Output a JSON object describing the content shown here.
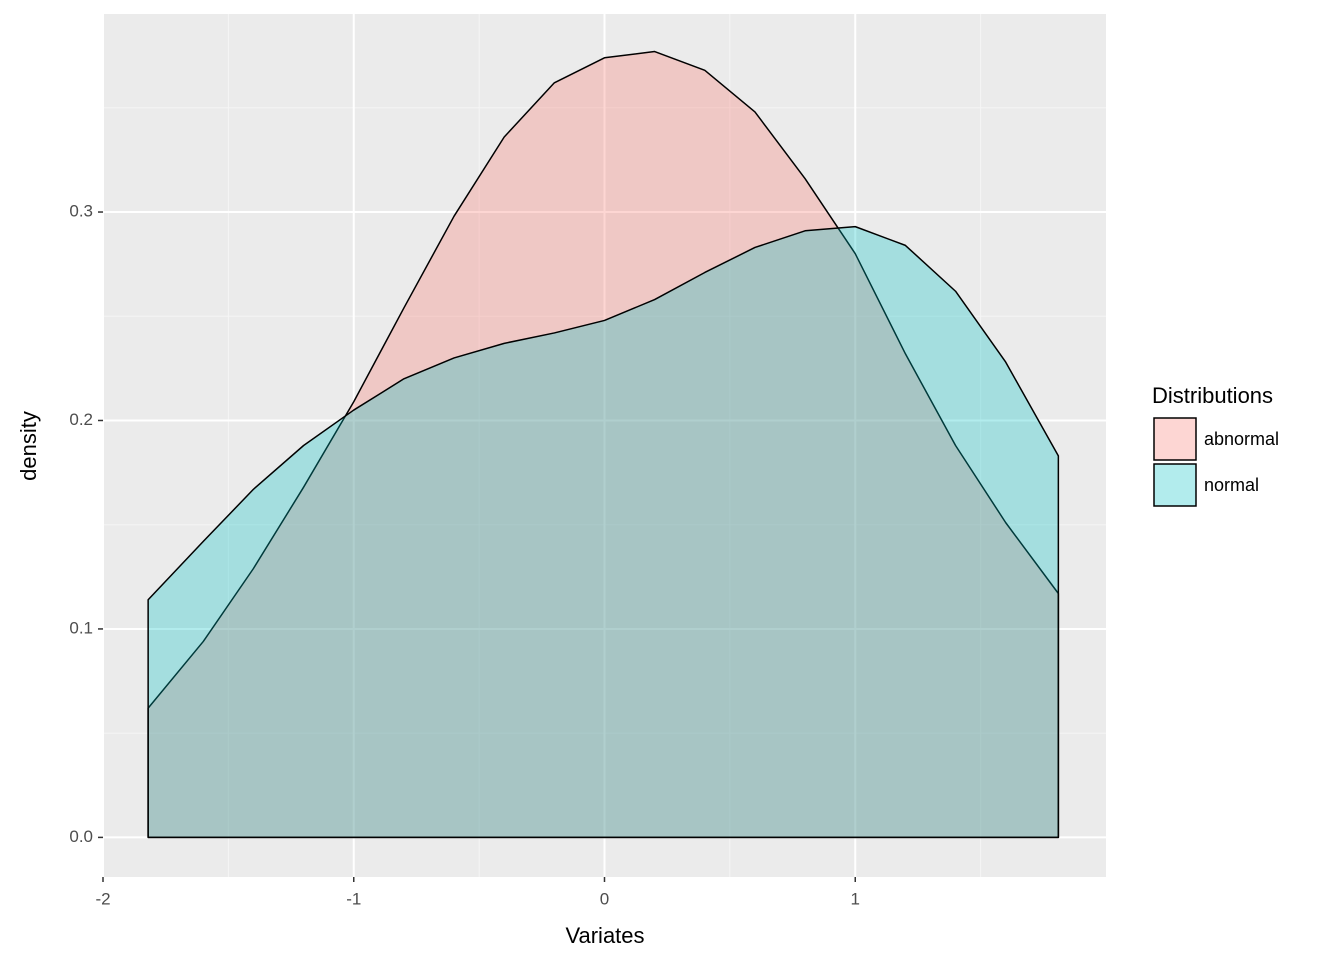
{
  "chart_data": {
    "type": "area",
    "x_label": "Variates",
    "y_label": "density",
    "legend_title": "Distributions",
    "x": [
      -1.82,
      -1.6,
      -1.4,
      -1.2,
      -1.0,
      -0.8,
      -0.6,
      -0.4,
      -0.2,
      0,
      0.2,
      0.4,
      0.6,
      0.8,
      1.0,
      1.2,
      1.4,
      1.6,
      1.81
    ],
    "series": [
      {
        "name": "abnormal",
        "color": "#F8766D",
        "values": [
          0.062,
          0.094,
          0.129,
          0.168,
          0.209,
          0.254,
          0.298,
          0.336,
          0.362,
          0.374,
          0.377,
          0.368,
          0.348,
          0.316,
          0.28,
          0.232,
          0.188,
          0.151,
          0.117
        ]
      },
      {
        "name": "normal",
        "color": "#00BFC4",
        "values": [
          0.114,
          0.142,
          0.167,
          0.188,
          0.205,
          0.22,
          0.23,
          0.237,
          0.242,
          0.248,
          0.258,
          0.271,
          0.283,
          0.291,
          0.293,
          0.284,
          0.262,
          0.228,
          0.183
        ]
      }
    ],
    "xlim": [
      -2,
      2
    ],
    "xticks": [
      -2,
      -1,
      0,
      1
    ],
    "ylim": [
      -0.019,
      0.395
    ],
    "yticks": [
      {
        "value": 0,
        "label": "0.0"
      },
      0.1,
      0.2,
      0.3
    ],
    "grid": true,
    "legend": "right"
  }
}
